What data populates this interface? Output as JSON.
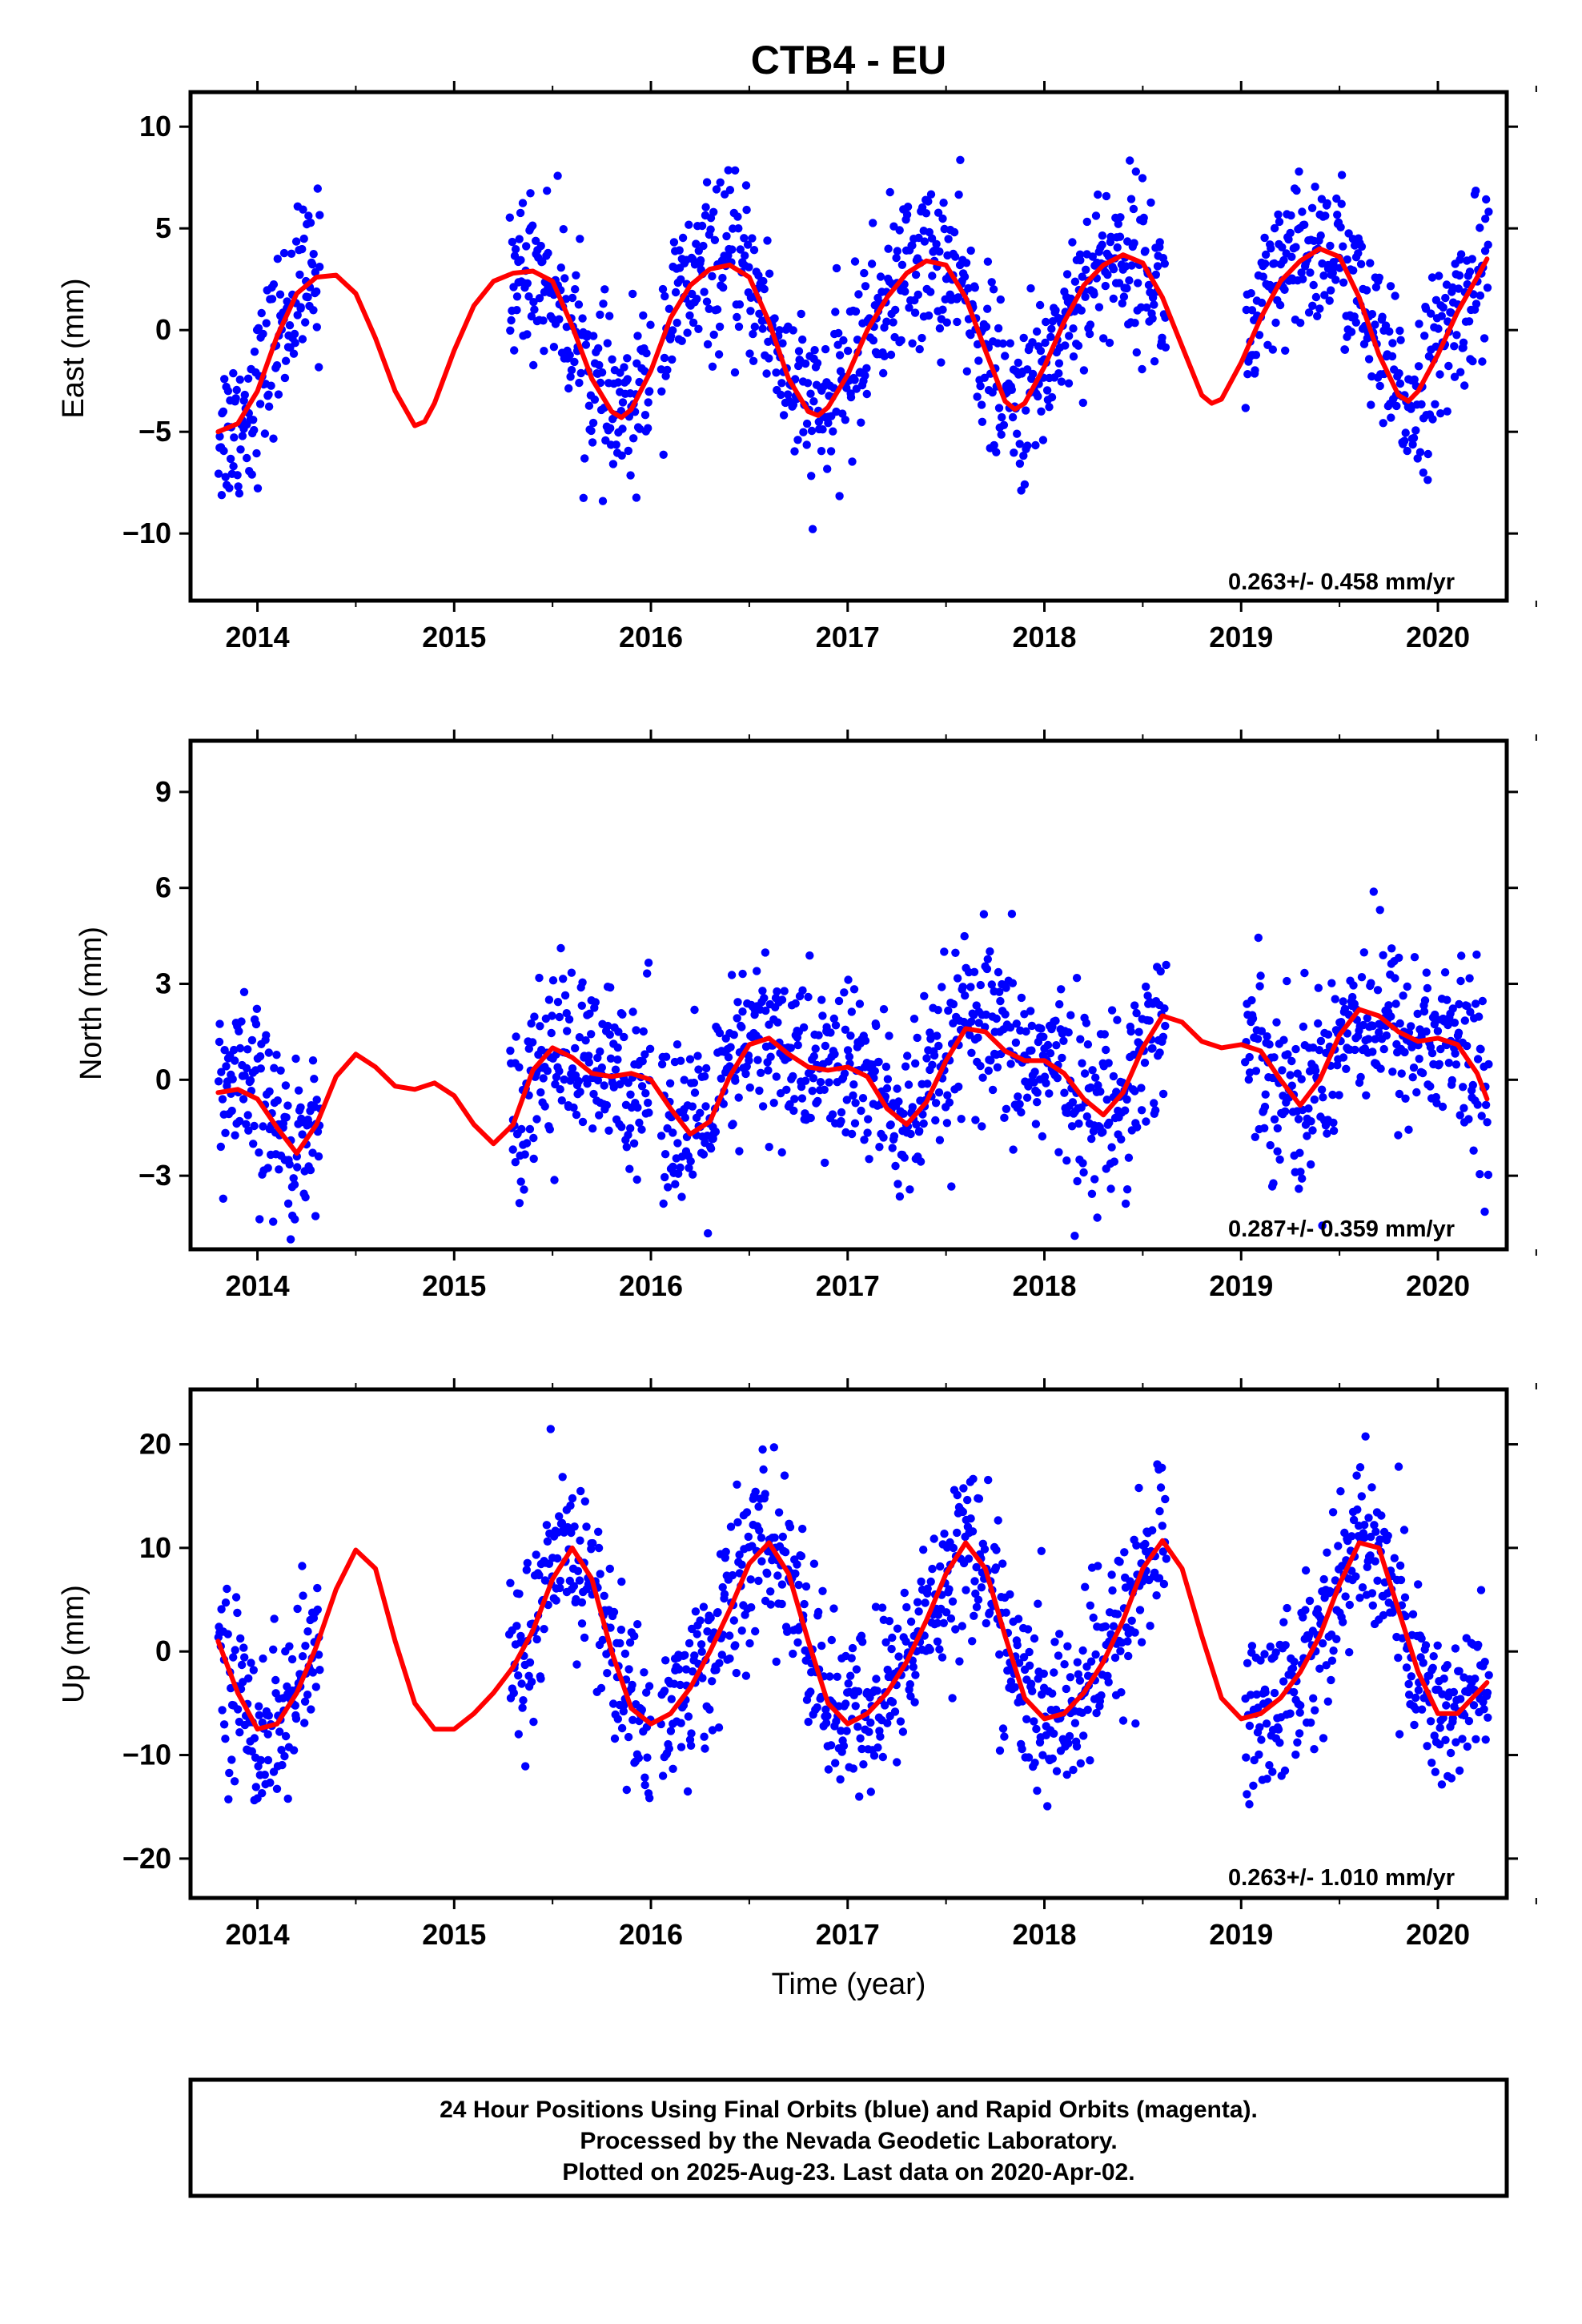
{
  "title": "CTB4 - EU",
  "footer": {
    "lines": [
      "24 Hour Positions Using Final Orbits (blue) and Rapid Orbits (magenta).",
      "Processed by the Nevada Geodetic Laboratory.",
      "Plotted on 2025-Aug-23. Last data on 2020-Apr-02."
    ]
  },
  "colors": {
    "data": "#0000ff",
    "model": "#ff0000",
    "frame": "#000000"
  },
  "chart_data": [
    {
      "type": "scatter",
      "component": "East",
      "ylabel": "East (mm)",
      "xlabel": "",
      "xlim": [
        2013.66,
        2020.35
      ],
      "ylim": [
        -13.3,
        11.7
      ],
      "xticks": [
        "2014",
        "2015",
        "2016",
        "2017",
        "2018",
        "2019",
        "2020"
      ],
      "yticks": [
        "−10",
        "−5",
        "0",
        "5",
        "10"
      ],
      "ytick_values": [
        -10,
        -5,
        0,
        5,
        10
      ],
      "annotation": "0.263+/- 0.458 mm/yr",
      "grid": false,
      "series": [
        {
          "kind": "points",
          "segments": [
            [
              2013.8,
              2014.32
            ],
            [
              2015.28,
              2016.0
            ],
            [
              2016.05,
              2016.72
            ],
            [
              2016.72,
              2017.46
            ],
            [
              2017.46,
              2018.62
            ],
            [
              2019.02,
              2019.5
            ],
            [
              2019.5,
              2020.26
            ]
          ]
        },
        {
          "kind": "line",
          "x": [
            2013.8,
            2013.9,
            2014.0,
            2014.1,
            2014.2,
            2014.3,
            2014.4,
            2014.5,
            2014.6,
            2014.7,
            2014.8,
            2014.85,
            2014.9,
            2015.0,
            2015.1,
            2015.2,
            2015.3,
            2015.4,
            2015.5,
            2015.6,
            2015.7,
            2015.8,
            2015.85,
            2015.9,
            2016.0,
            2016.1,
            2016.2,
            2016.3,
            2016.4,
            2016.5,
            2016.6,
            2016.7,
            2016.8,
            2016.85,
            2016.9,
            2017.0,
            2017.1,
            2017.2,
            2017.3,
            2017.4,
            2017.5,
            2017.6,
            2017.7,
            2017.8,
            2017.85,
            2017.9,
            2018.0,
            2018.1,
            2018.2,
            2018.3,
            2018.4,
            2018.5,
            2018.6,
            2018.7,
            2018.8,
            2018.85,
            2018.9,
            2019.0,
            2019.1,
            2019.2,
            2019.3,
            2019.4,
            2019.5,
            2019.6,
            2019.7,
            2019.8,
            2019.85,
            2019.9,
            2020.0,
            2020.1,
            2020.2,
            2020.25
          ],
          "y": [
            -5.0,
            -4.6,
            -3.0,
            -0.3,
            1.8,
            2.6,
            2.7,
            1.8,
            -0.4,
            -3.0,
            -4.7,
            -4.5,
            -3.6,
            -1.0,
            1.2,
            2.4,
            2.8,
            2.9,
            2.4,
            0.2,
            -2.4,
            -4.0,
            -4.3,
            -3.9,
            -2.0,
            0.6,
            2.2,
            3.0,
            3.2,
            2.6,
            0.4,
            -2.4,
            -4.0,
            -4.2,
            -3.8,
            -2.2,
            0.0,
            1.6,
            2.8,
            3.4,
            3.2,
            1.6,
            -1.0,
            -3.5,
            -3.9,
            -3.6,
            -1.8,
            0.4,
            2.2,
            3.2,
            3.7,
            3.3,
            1.6,
            -0.8,
            -3.2,
            -3.6,
            -3.4,
            -1.6,
            0.6,
            2.4,
            3.4,
            4.0,
            3.6,
            1.6,
            -1.2,
            -3.2,
            -3.5,
            -3.0,
            -1.2,
            0.9,
            2.6,
            3.5
          ]
        }
      ]
    },
    {
      "type": "scatter",
      "component": "North",
      "ylabel": "North (mm)",
      "xlabel": "",
      "xlim": [
        2013.66,
        2020.35
      ],
      "ylim": [
        -5.3,
        10.6
      ],
      "xticks": [
        "2014",
        "2015",
        "2016",
        "2017",
        "2018",
        "2019",
        "2020"
      ],
      "yticks": [
        "−3",
        "0",
        "3",
        "6",
        "9"
      ],
      "ytick_values": [
        -3,
        0,
        3,
        6,
        9
      ],
      "annotation": "0.287+/- 0.359 mm/yr",
      "grid": false,
      "series": [
        {
          "kind": "points",
          "segments": [
            [
              2013.8,
              2014.32
            ],
            [
              2015.28,
              2016.0
            ],
            [
              2016.05,
              2016.72
            ],
            [
              2016.72,
              2017.46
            ],
            [
              2017.46,
              2018.62
            ],
            [
              2019.02,
              2019.5
            ],
            [
              2019.5,
              2020.26
            ]
          ]
        },
        {
          "kind": "line",
          "x": [
            2013.8,
            2013.9,
            2014.0,
            2014.1,
            2014.2,
            2014.3,
            2014.4,
            2014.5,
            2014.6,
            2014.7,
            2014.8,
            2014.9,
            2015.0,
            2015.1,
            2015.2,
            2015.3,
            2015.4,
            2015.5,
            2015.6,
            2015.7,
            2015.8,
            2015.9,
            2016.0,
            2016.1,
            2016.2,
            2016.3,
            2016.4,
            2016.5,
            2016.6,
            2016.7,
            2016.8,
            2016.9,
            2017.0,
            2017.1,
            2017.2,
            2017.3,
            2017.4,
            2017.5,
            2017.6,
            2017.7,
            2017.8,
            2017.9,
            2018.0,
            2018.1,
            2018.2,
            2018.3,
            2018.4,
            2018.5,
            2018.6,
            2018.7,
            2018.8,
            2018.9,
            2019.0,
            2019.1,
            2019.2,
            2019.3,
            2019.4,
            2019.5,
            2019.6,
            2019.7,
            2019.8,
            2019.9,
            2020.0,
            2020.1,
            2020.2,
            2020.25
          ],
          "y": [
            -0.4,
            -0.3,
            -0.6,
            -1.5,
            -2.3,
            -1.4,
            0.1,
            0.8,
            0.4,
            -0.2,
            -0.3,
            -0.1,
            -0.5,
            -1.4,
            -2.0,
            -1.4,
            0.3,
            1.0,
            0.7,
            0.2,
            0.1,
            0.2,
            0.0,
            -0.9,
            -1.7,
            -1.3,
            0.1,
            1.1,
            1.3,
            0.8,
            0.4,
            0.3,
            0.4,
            0.1,
            -0.9,
            -1.4,
            -0.7,
            0.6,
            1.6,
            1.5,
            0.9,
            0.6,
            0.6,
            0.2,
            -0.6,
            -1.1,
            -0.4,
            1.0,
            2.0,
            1.8,
            1.2,
            1.0,
            1.1,
            0.9,
            0.0,
            -0.8,
            0.0,
            1.4,
            2.2,
            2.0,
            1.5,
            1.2,
            1.3,
            1.1,
            0.2,
            -0.6
          ]
        }
      ]
    },
    {
      "type": "scatter",
      "component": "Up",
      "ylabel": "Up (mm)",
      "xlabel": "Time (year)",
      "xlim": [
        2013.66,
        2020.35
      ],
      "ylim": [
        -23.8,
        25.3
      ],
      "xticks": [
        "2014",
        "2015",
        "2016",
        "2017",
        "2018",
        "2019",
        "2020"
      ],
      "yticks": [
        "−20",
        "−10",
        "0",
        "10",
        "20"
      ],
      "ytick_values": [
        -20,
        -10,
        0,
        10,
        20
      ],
      "annotation": "0.263+/- 1.010 mm/yr",
      "grid": false,
      "series": [
        {
          "kind": "points",
          "segments": [
            [
              2013.8,
              2014.32
            ],
            [
              2015.28,
              2016.0
            ],
            [
              2016.05,
              2016.72
            ],
            [
              2016.72,
              2017.46
            ],
            [
              2017.46,
              2018.62
            ],
            [
              2019.02,
              2019.5
            ],
            [
              2019.5,
              2020.26
            ]
          ]
        },
        {
          "kind": "line",
          "x": [
            2013.8,
            2013.9,
            2014.0,
            2014.1,
            2014.2,
            2014.3,
            2014.4,
            2014.5,
            2014.6,
            2014.7,
            2014.8,
            2014.9,
            2015.0,
            2015.1,
            2015.2,
            2015.3,
            2015.4,
            2015.5,
            2015.6,
            2015.7,
            2015.8,
            2015.9,
            2016.0,
            2016.1,
            2016.2,
            2016.3,
            2016.4,
            2016.5,
            2016.6,
            2016.7,
            2016.8,
            2016.9,
            2017.0,
            2017.1,
            2017.2,
            2017.3,
            2017.4,
            2017.5,
            2017.6,
            2017.7,
            2017.8,
            2017.9,
            2018.0,
            2018.1,
            2018.2,
            2018.3,
            2018.4,
            2018.5,
            2018.6,
            2018.7,
            2018.8,
            2018.9,
            2019.0,
            2019.1,
            2019.2,
            2019.3,
            2019.4,
            2019.5,
            2019.6,
            2019.7,
            2019.8,
            2019.9,
            2020.0,
            2020.1,
            2020.2,
            2020.25
          ],
          "y": [
            1.0,
            -4.0,
            -7.5,
            -7.0,
            -4.0,
            0.5,
            6.0,
            9.8,
            8.0,
            1.0,
            -5.0,
            -7.5,
            -7.5,
            -6.0,
            -4.0,
            -1.5,
            2.0,
            7.0,
            10.0,
            7.0,
            0.0,
            -5.5,
            -7.0,
            -6.0,
            -3.5,
            0.0,
            4.0,
            8.5,
            10.5,
            7.5,
            1.0,
            -5.0,
            -7.0,
            -6.0,
            -4.0,
            -1.0,
            3.0,
            7.5,
            10.5,
            8.0,
            1.5,
            -4.5,
            -6.5,
            -6.0,
            -4.0,
            -1.0,
            3.0,
            8.0,
            10.7,
            8.0,
            1.5,
            -4.5,
            -6.5,
            -6.0,
            -4.5,
            -2.0,
            1.5,
            6.5,
            10.5,
            10.0,
            4.0,
            -2.0,
            -6.0,
            -6.0,
            -4.0,
            -3.0
          ]
        }
      ]
    }
  ]
}
